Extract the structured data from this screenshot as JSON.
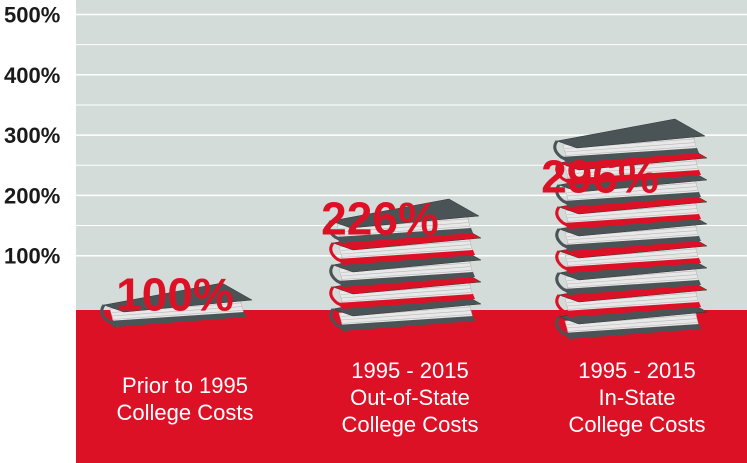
{
  "colors": {
    "panel": "#d4dcda",
    "band": "#dc1126",
    "gridline": "#ffffff",
    "book_dark": "#4a5456",
    "book_red": "#dc1126",
    "pages": "#e8e8e8",
    "label_text": "#ffffff",
    "value_text": "#dc1126",
    "tick_text": "#1a1a1a"
  },
  "chart_data": {
    "type": "bar",
    "title": "",
    "xlabel": "",
    "ylabel": "",
    "ylim": [
      0,
      500
    ],
    "yticks": [
      {
        "value": 100,
        "label": "100%"
      },
      {
        "value": 200,
        "label": "200%"
      },
      {
        "value": 300,
        "label": "300%"
      },
      {
        "value": 400,
        "label": "400%"
      },
      {
        "value": 500,
        "label": "500%"
      }
    ],
    "grid": true,
    "legend": "none",
    "categories": [
      [
        "Prior to 1995",
        "College Costs"
      ],
      [
        "1995 - 2015",
        "Out-of-State",
        "College Costs"
      ],
      [
        "1995 - 2015",
        "In-State",
        "College Costs"
      ]
    ],
    "values": [
      100,
      226,
      296
    ],
    "value_labels": [
      "100%",
      "226%",
      "296%"
    ],
    "book_stacks": [
      [
        "dark"
      ],
      [
        "dark",
        "red",
        "dark",
        "red",
        "dark"
      ],
      [
        "dark",
        "red",
        "dark",
        "red",
        "dark",
        "red",
        "dark",
        "red",
        "dark"
      ]
    ]
  }
}
